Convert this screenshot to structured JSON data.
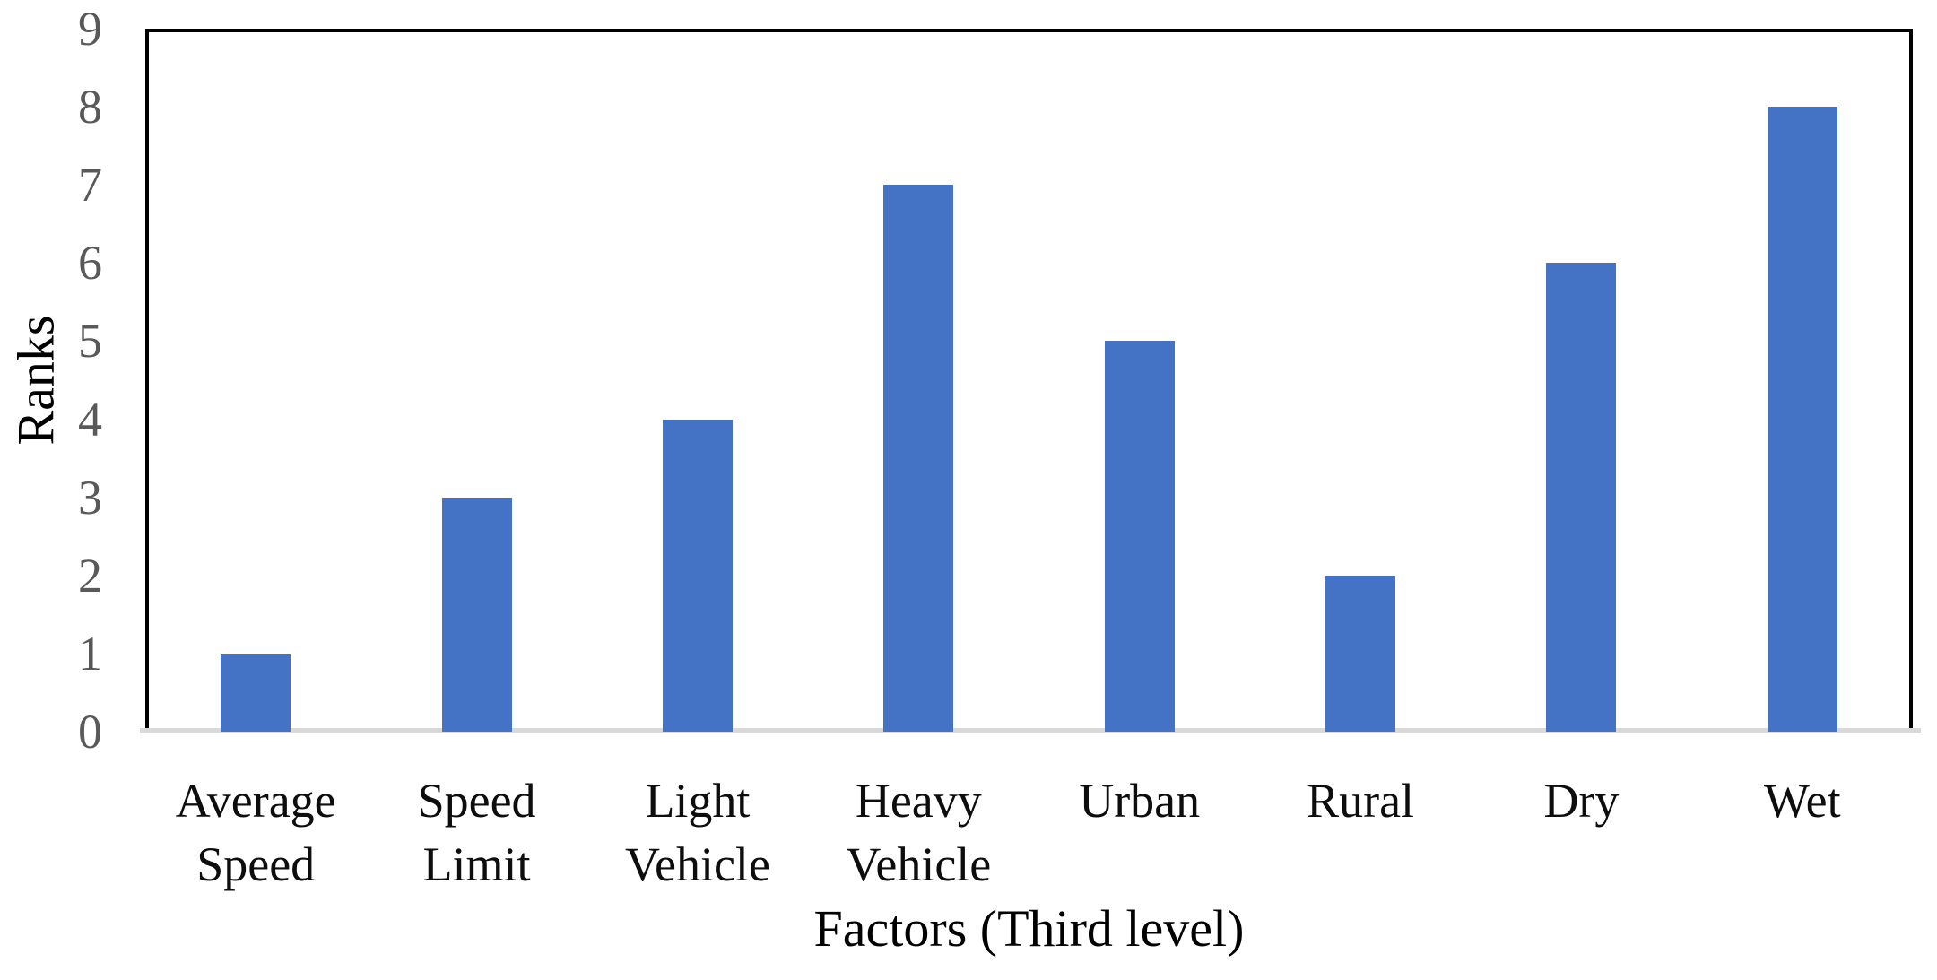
{
  "chart_data": {
    "type": "bar",
    "categories": [
      "Average\nSpeed",
      "Speed\nLimit",
      "Light\nVehicle",
      "Heavy\nVehicle",
      "Urban",
      "Rural",
      "Dry",
      "Wet"
    ],
    "values": [
      1,
      3,
      4,
      7,
      5,
      2,
      6,
      8
    ],
    "title": "",
    "xlabel": "Factors (Third level)",
    "ylabel": "Ranks",
    "ylim": [
      0,
      9
    ],
    "yticks": [
      0,
      1,
      2,
      3,
      4,
      5,
      6,
      7,
      8,
      9
    ],
    "grid": false,
    "legend": false,
    "bar_color": "#4472C4",
    "tick_label_color": "#595959",
    "category_label_color": "#0d0d0d",
    "axis_title_color": "#000000",
    "baseline_color": "#d9d9d9",
    "plot_border_color": "#000000"
  }
}
